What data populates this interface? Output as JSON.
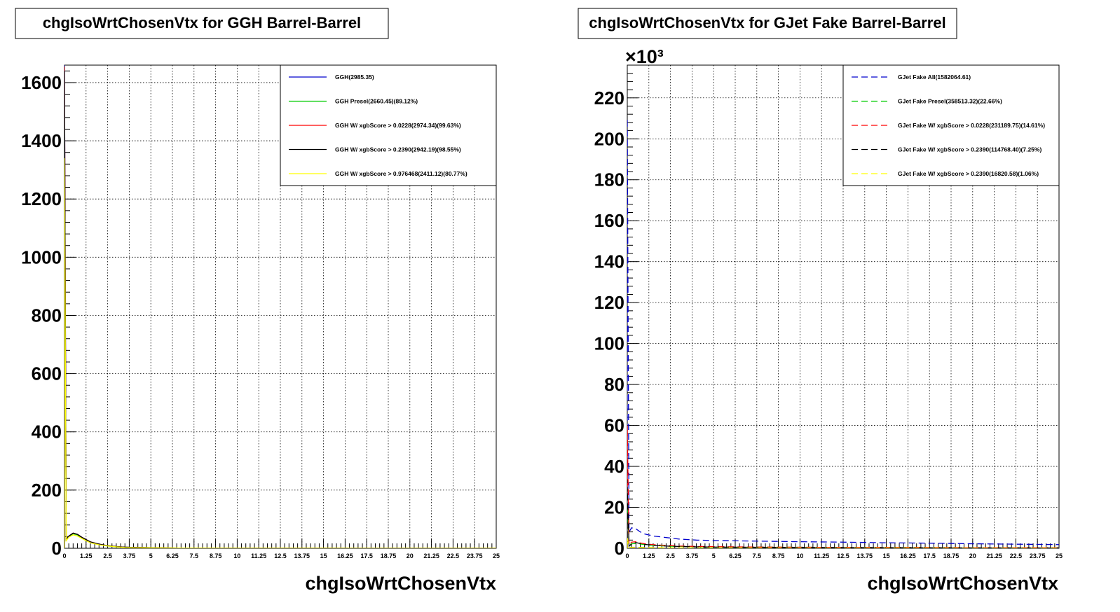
{
  "chart_data": [
    {
      "type": "line",
      "title": "chgIsoWrtChosenVtx for GGH Barrel-Barrel",
      "xlabel": "chgIsoWrtChosenVtx",
      "ylabel": "",
      "xlim": [
        0,
        25
      ],
      "ylim": [
        0,
        1660
      ],
      "y_exponent": "",
      "x_ticks": [
        "0",
        "1.25",
        "2.5",
        "3.75",
        "5",
        "6.25",
        "7.5",
        "8.75",
        "10",
        "11.25",
        "12.5",
        "13.75",
        "15",
        "16.25",
        "17.5",
        "18.75",
        "20",
        "21.25",
        "22.5",
        "23.75",
        "25"
      ],
      "y_ticks": [
        0,
        200,
        400,
        600,
        800,
        1000,
        1200,
        1400,
        1600
      ],
      "y_tick_labels": [
        "0",
        "200",
        "400",
        "600",
        "800",
        "1000",
        "1200",
        "1400",
        "1600"
      ],
      "grid": true,
      "legend_position": "top-right",
      "series": [
        {
          "name": "GGH(2985.35)",
          "color": "#0000cc",
          "dash": "solid",
          "x": [
            0,
            0.1,
            0.25,
            0.5,
            0.75,
            1,
            1.25,
            1.5,
            2,
            2.5,
            3,
            3.5,
            4,
            5,
            6,
            8,
            10,
            15,
            20,
            25
          ],
          "y": [
            1660,
            30,
            42,
            52,
            48,
            38,
            30,
            22,
            14,
            9,
            6,
            4,
            3,
            2,
            1,
            0.5,
            0.3,
            0.1,
            0,
            0
          ]
        },
        {
          "name": "GGH Presel(2660.45)(89.12%)",
          "color": "#00cc00",
          "dash": "solid",
          "x": [
            0,
            0.1,
            0.25,
            0.5,
            0.75,
            1,
            1.25,
            1.5,
            2,
            2.5,
            3,
            3.5,
            4,
            5,
            6,
            8,
            10,
            15,
            20,
            25
          ],
          "y": [
            1480,
            28,
            40,
            50,
            46,
            36,
            28,
            20,
            13,
            8,
            5,
            4,
            3,
            2,
            1,
            0.5,
            0.3,
            0.1,
            0,
            0
          ]
        },
        {
          "name": "GGH W/ xgbScore > 0.0228(2974.34)(99.63%)",
          "color": "#ff0000",
          "dash": "solid",
          "x": [
            0,
            0.1,
            0.25,
            0.5,
            0.75,
            1,
            1.25,
            1.5,
            2,
            2.5,
            3,
            3.5,
            4,
            5,
            6,
            8,
            10,
            15,
            20,
            25
          ],
          "y": [
            1655,
            30,
            42,
            52,
            48,
            38,
            30,
            22,
            14,
            9,
            6,
            4,
            3,
            2,
            1,
            0.5,
            0.3,
            0.1,
            0,
            0
          ]
        },
        {
          "name": "GGH W/ xgbScore > 0.2390(2942.19)(98.55%)",
          "color": "#000000",
          "dash": "solid",
          "x": [
            0,
            0.1,
            0.25,
            0.5,
            0.75,
            1,
            1.25,
            1.5,
            2,
            2.5,
            3,
            3.5,
            4,
            5,
            6,
            8,
            10,
            15,
            20,
            25
          ],
          "y": [
            1640,
            30,
            42,
            52,
            48,
            38,
            30,
            22,
            14,
            9,
            6,
            4,
            3,
            2,
            1,
            0.5,
            0.3,
            0.1,
            0,
            0
          ]
        },
        {
          "name": "GGH W/ xgbScore > 0.976468(2411.12)(80.77%)",
          "color": "#ffff00",
          "dash": "solid",
          "x": [
            0,
            0.1,
            0.25,
            0.5,
            0.75,
            1,
            1.25,
            1.5,
            2,
            2.5,
            3,
            3.5,
            4,
            5,
            6,
            8,
            10,
            15,
            20,
            25
          ],
          "y": [
            1340,
            26,
            38,
            46,
            42,
            34,
            26,
            19,
            12,
            8,
            5,
            3,
            2,
            1.5,
            1,
            0.4,
            0.2,
            0.1,
            0,
            0
          ]
        }
      ]
    },
    {
      "type": "line",
      "title": "chgIsoWrtChosenVtx for GJet Fake Barrel-Barrel",
      "xlabel": "chgIsoWrtChosenVtx",
      "ylabel": "",
      "xlim": [
        0,
        25
      ],
      "ylim": [
        0,
        236
      ],
      "y_exponent": "×10³",
      "x_ticks": [
        "0",
        "1.25",
        "2.5",
        "3.75",
        "5",
        "6.25",
        "7.5",
        "8.75",
        "10",
        "11.25",
        "12.5",
        "13.75",
        "15",
        "16.25",
        "17.5",
        "18.75",
        "20",
        "21.25",
        "22.5",
        "23.75",
        "25"
      ],
      "y_ticks": [
        0,
        20,
        40,
        60,
        80,
        100,
        120,
        140,
        160,
        180,
        200,
        220
      ],
      "y_tick_labels": [
        "0",
        "20",
        "40",
        "60",
        "80",
        "100",
        "120",
        "140",
        "160",
        "180",
        "200",
        "220"
      ],
      "grid": true,
      "legend_position": "top-right",
      "series": [
        {
          "name": "GJet Fake All(1582064.61)",
          "color": "#0000cc",
          "dash": "dashed",
          "x": [
            0,
            0.1,
            0.25,
            0.5,
            0.75,
            1,
            1.5,
            2,
            2.5,
            3,
            4,
            5,
            7.5,
            10,
            12.5,
            15,
            17.5,
            20,
            22.5,
            25
          ],
          "y": [
            210,
            8,
            10,
            9.5,
            8,
            7,
            6,
            5.5,
            5,
            4.5,
            4,
            3.8,
            3.5,
            3.2,
            3,
            2.7,
            2.5,
            2.2,
            2,
            1.8
          ]
        },
        {
          "name": "GJet Fake Presel(358513.32)(22.66%)",
          "color": "#00cc00",
          "dash": "dashed",
          "x": [
            0,
            0.1,
            0.25,
            0.5,
            0.75,
            1,
            1.5,
            2,
            2.5,
            3,
            4,
            5,
            7.5,
            10,
            12.5,
            15,
            17.5,
            20,
            22.5,
            25
          ],
          "y": [
            22,
            1.5,
            2.2,
            2.4,
            2.1,
            1.8,
            1.4,
            1.2,
            1.0,
            0.9,
            0.8,
            0.7,
            0.6,
            0.5,
            0.45,
            0.4,
            0.35,
            0.3,
            0.3,
            0.25
          ]
        },
        {
          "name": "GJet Fake W/ xgbScore > 0.0228(231189.75)(14.61%)",
          "color": "#ff0000",
          "dash": "dashed",
          "x": [
            0,
            0.1,
            0.25,
            0.5,
            0.75,
            1,
            1.5,
            2,
            2.5,
            3,
            4,
            5,
            7.5,
            10,
            12.5,
            15,
            17.5,
            20,
            22.5,
            25
          ],
          "y": [
            60,
            1.5,
            3,
            3.2,
            2.6,
            2.2,
            1.8,
            1.5,
            1.3,
            1.1,
            0.9,
            0.8,
            0.6,
            0.5,
            0.45,
            0.4,
            0.35,
            0.3,
            0.3,
            0.25
          ]
        },
        {
          "name": "GJet Fake W/ xgbScore > 0.2390(114768.40)(7.25%)",
          "color": "#000000",
          "dash": "dashed",
          "x": [
            0,
            0.1,
            0.25,
            0.5,
            0.75,
            1,
            1.5,
            2,
            2.5,
            3,
            4,
            5,
            7.5,
            10,
            12.5,
            15,
            17.5,
            20,
            22.5,
            25
          ],
          "y": [
            30,
            1,
            2,
            2.8,
            2.3,
            1.9,
            1.5,
            1.2,
            1.0,
            0.9,
            0.7,
            0.6,
            0.5,
            0.4,
            0.35,
            0.3,
            0.25,
            0.2,
            0.2,
            0.15
          ]
        },
        {
          "name": "GJet Fake W/ xgbScore > 0.2390(16820.58)(1.06%)",
          "color": "#ffff00",
          "dash": "dashed",
          "x": [
            0,
            0.1,
            0.25,
            0.5,
            0.75,
            1,
            1.5,
            2,
            2.5,
            3,
            4,
            5,
            7.5,
            10,
            12.5,
            15,
            17.5,
            20,
            22.5,
            25
          ],
          "y": [
            5,
            0.3,
            0.5,
            0.5,
            0.45,
            0.4,
            0.3,
            0.25,
            0.2,
            0.18,
            0.15,
            0.12,
            0.1,
            0.08,
            0.07,
            0.06,
            0.05,
            0.04,
            0.04,
            0.03
          ]
        }
      ]
    }
  ]
}
